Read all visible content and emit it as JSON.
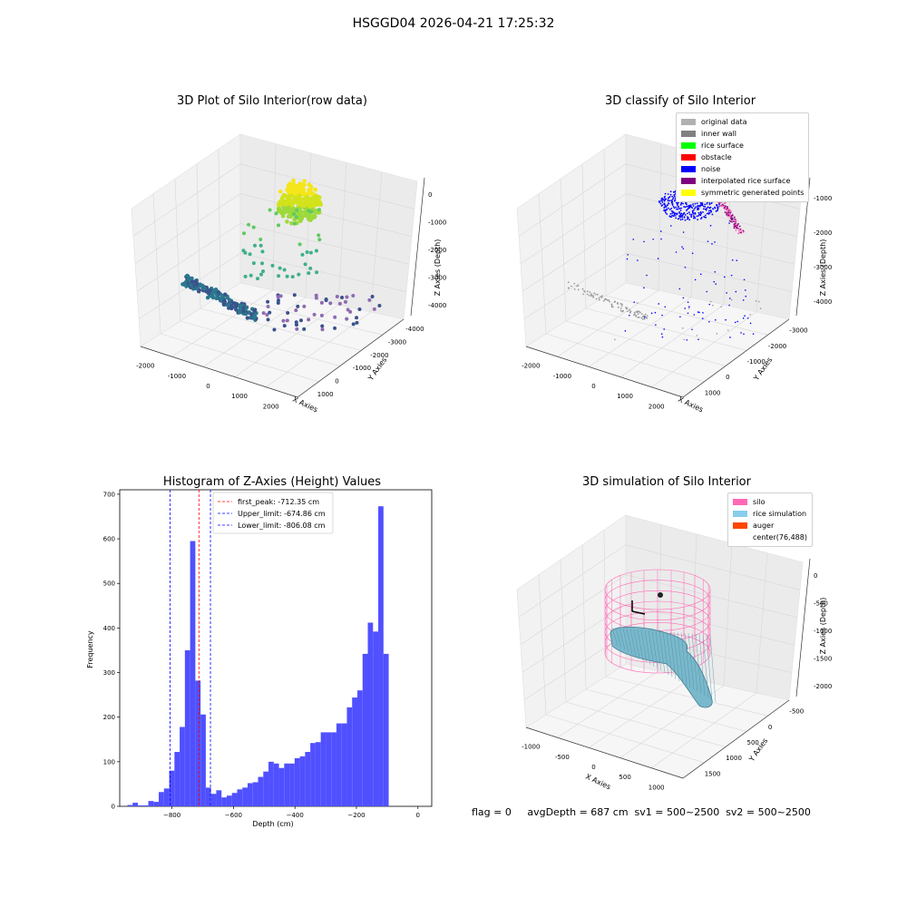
{
  "suptitle": "HSGGD04 2026-04-21 17:25:32",
  "footer": "flag = 0     avgDepth = 687 cm  sv1 = 500~2500  sv2 = 500~2500",
  "panels": {
    "raw": {
      "title": "3D Plot of Silo Interior(row data)",
      "xlabel": "X Axies",
      "ylabel": "Y Axies",
      "zlabel": "Z Axies (Depth)",
      "xticks": [
        "-2000",
        "-1000",
        "0",
        "1000",
        "2000"
      ],
      "yticks": [
        "1000",
        "0",
        "-1000",
        "-2000",
        "-3000",
        "-4000"
      ],
      "zticks": [
        "0",
        "-1000",
        "-2000",
        "-3000",
        "-4000"
      ]
    },
    "classify": {
      "title": "3D classify of Silo Interior",
      "xlabel": "X Axies",
      "ylabel": "Y Axies",
      "zlabel": "Z Axies (Depth)",
      "xticks": [
        "-2000",
        "-1000",
        "0",
        "1000",
        "2000"
      ],
      "yticks": [
        "1000",
        "0",
        "-1000",
        "-2000",
        "-3000"
      ],
      "zticks": [
        "-1000",
        "-2000",
        "-3000",
        "-4000"
      ],
      "legend": [
        {
          "label": "original data",
          "color": "#b0b0b0"
        },
        {
          "label": "inner wall",
          "color": "#808080"
        },
        {
          "label": "rice surface",
          "color": "#00ff00"
        },
        {
          "label": "obstacle",
          "color": "#ff0000"
        },
        {
          "label": "noise",
          "color": "#0000ff"
        },
        {
          "label": "interpolated rice surface",
          "color": "#800080"
        },
        {
          "label": "symmetric generated points",
          "color": "#ffff00"
        }
      ]
    },
    "simulation": {
      "title": "3D simulation of Silo Interior",
      "xlabel": "X Axies",
      "ylabel": "Y Axies",
      "zlabel": "Z Axies (Depth)",
      "xticks": [
        "-1000",
        "-500",
        "0",
        "500",
        "1000"
      ],
      "yticks": [
        "1500",
        "1000",
        "500",
        "0",
        "-500"
      ],
      "zticks": [
        "0",
        "-500",
        "-1000",
        "-1500",
        "-2000"
      ],
      "legend": [
        {
          "label": "silo",
          "color": "#ff69b4"
        },
        {
          "label": "rice simulation",
          "color": "#87ceeb"
        },
        {
          "label": "auger",
          "color": "#ff4500"
        },
        {
          "label": "center(76,488)",
          "color": "#ffffff"
        }
      ]
    }
  },
  "chart_data": {
    "type": "bar",
    "title": "Histogram of Z-Axies (Height) Values",
    "xlabel": "Depth (cm)",
    "ylabel": "Frequency",
    "xlim": [
      -970,
      45
    ],
    "ylim": [
      0,
      710
    ],
    "xticks": [
      -800,
      -600,
      -400,
      -200,
      0
    ],
    "yticks": [
      0,
      100,
      200,
      300,
      400,
      500,
      600,
      700
    ],
    "bin_width": 17,
    "bin_start": -945,
    "values": [
      3,
      8,
      2,
      2,
      12,
      10,
      32,
      40,
      80,
      122,
      178,
      350,
      595,
      282,
      206,
      42,
      28,
      36,
      20,
      24,
      30,
      38,
      42,
      52,
      54,
      66,
      78,
      100,
      96,
      86,
      96,
      96,
      108,
      112,
      122,
      142,
      144,
      166,
      166,
      166,
      186,
      186,
      222,
      244,
      260,
      342,
      412,
      392,
      673,
      342
    ],
    "bar_color": "#5050ff",
    "reference_lines": [
      {
        "label": "first_peak: -712.35 cm",
        "x": -712.35,
        "color": "#ff0000"
      },
      {
        "label": "Upper_limit: -674.86 cm",
        "x": -674.86,
        "color": "#0000ff"
      },
      {
        "label": "Lower_limit: -806.08 cm",
        "x": -806.08,
        "color": "#0000ff"
      }
    ],
    "legend_position": "top-left"
  }
}
